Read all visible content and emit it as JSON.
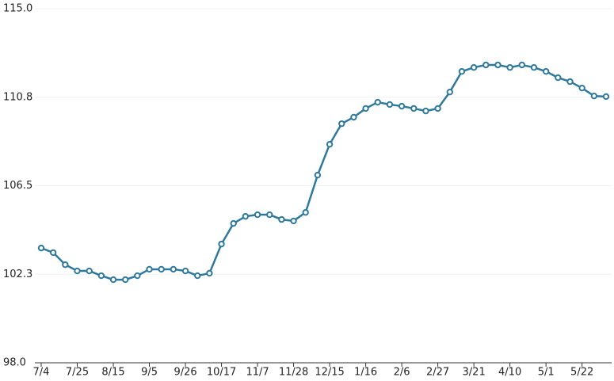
{
  "chart_data": {
    "type": "line",
    "categories": [
      "7/4",
      null,
      null,
      "7/25",
      null,
      null,
      "8/15",
      null,
      null,
      "9/5",
      null,
      null,
      "9/26",
      null,
      null,
      "10/17",
      null,
      null,
      "11/7",
      null,
      null,
      "11/28",
      null,
      null,
      "12/15",
      null,
      null,
      "1/16",
      null,
      null,
      "2/6",
      null,
      null,
      "2/27",
      null,
      null,
      "3/21",
      null,
      null,
      "4/10",
      null,
      null,
      "5/1",
      null,
      null,
      "5/22",
      null,
      null
    ],
    "values": [
      103.51,
      103.29,
      102.71,
      102.41,
      102.41,
      102.18,
      101.99,
      101.99,
      102.18,
      102.49,
      102.49,
      102.49,
      102.41,
      102.18,
      102.3,
      103.7,
      104.69,
      105.03,
      105.11,
      105.11,
      104.88,
      104.81,
      105.22,
      107.01,
      108.49,
      109.48,
      109.79,
      110.21,
      110.51,
      110.4,
      110.32,
      110.21,
      110.09,
      110.21,
      111.0,
      111.99,
      112.18,
      112.3,
      112.3,
      112.18,
      112.3,
      112.18,
      111.99,
      111.69,
      111.5,
      111.19,
      110.81,
      110.78
    ],
    "color": "#2f7a9c",
    "ylim": [
      98,
      115
    ],
    "yticks": [
      {
        "value": 98,
        "label": "98.0"
      },
      {
        "value": 102.25,
        "label": "102.3"
      },
      {
        "value": 106.5,
        "label": "106.5"
      },
      {
        "value": 110.75,
        "label": "110.8"
      },
      {
        "value": 115,
        "label": "115.0"
      }
    ],
    "grid": true
  }
}
